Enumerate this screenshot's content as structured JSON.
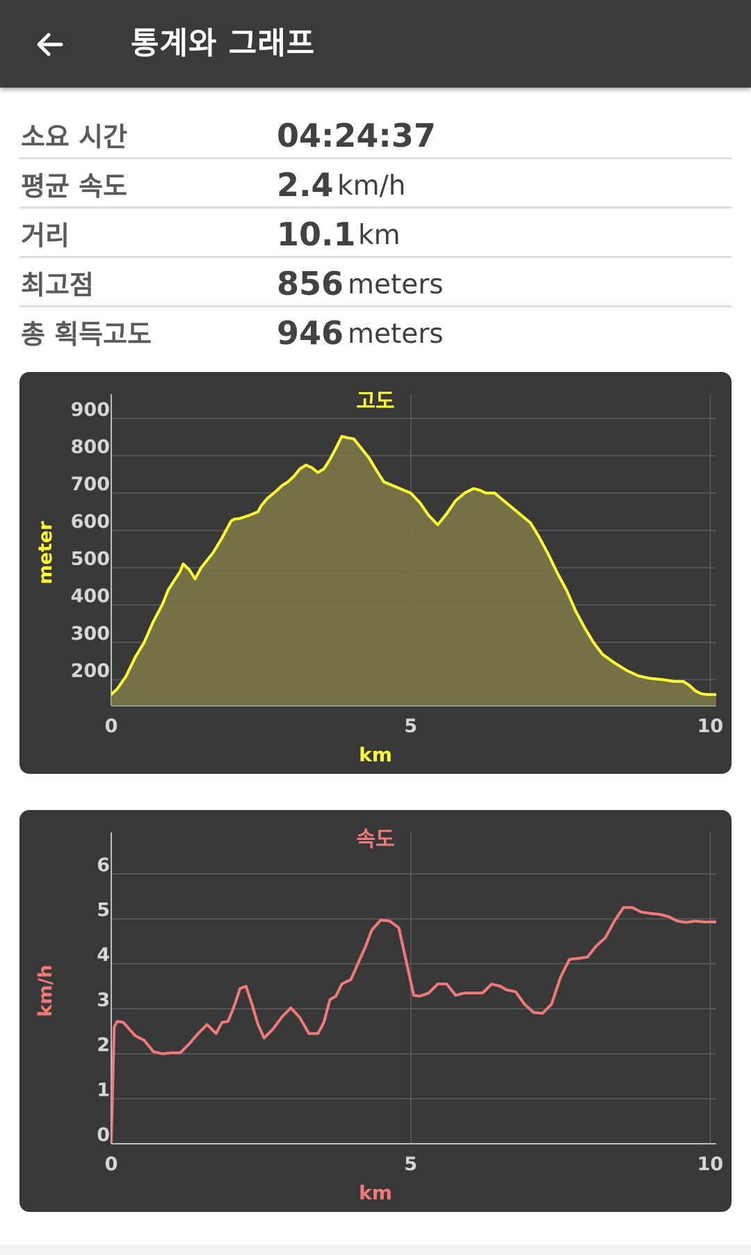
{
  "header": {
    "title": "통계와 그래프",
    "back_icon": "arrow-left-icon"
  },
  "stats": [
    {
      "label": "소요 시간",
      "value": "04:24:37",
      "unit": ""
    },
    {
      "label": "평균 속도",
      "value": "2.4",
      "unit": "km/h"
    },
    {
      "label": "거리",
      "value": "10.1",
      "unit": "km"
    },
    {
      "label": "최고점",
      "value": "856",
      "unit": "meters"
    },
    {
      "label": "총 획득고도",
      "value": "946",
      "unit": "meters"
    }
  ],
  "colors": {
    "appbar": "#3a3a3a",
    "card": "#383838",
    "elevation": "#ffff33",
    "elevation_fill": "#7a7648",
    "speed": "#ef7a78",
    "axis_text": "#d6d6d6",
    "grid": "#5e5e5e"
  },
  "chart_data": [
    {
      "type": "area",
      "title": "고도",
      "xlabel": "km",
      "ylabel": "meter",
      "xlim": [
        0,
        10.1
      ],
      "ylim": [
        130,
        950
      ],
      "xticks": [
        0,
        5,
        10
      ],
      "xtick_labels": [
        "0",
        "5",
        "10"
      ],
      "yticks": [
        200,
        300,
        400,
        500,
        600,
        700,
        800,
        900
      ],
      "ytick_labels": [
        "200",
        "300",
        "400",
        "500",
        "600",
        "700",
        "800",
        "900"
      ],
      "grid": true,
      "series": [
        {
          "x": [
            0,
            0.1,
            0.25,
            0.4,
            0.55,
            0.7,
            0.85,
            0.95,
            1.05,
            1.15,
            1.2,
            1.3,
            1.4,
            1.5,
            1.6,
            1.7,
            1.85,
            2.0,
            2.05,
            2.15,
            2.3,
            2.45,
            2.5,
            2.6,
            2.75,
            2.85,
            2.95,
            3.05,
            3.15,
            3.25,
            3.35,
            3.45,
            3.55,
            3.65,
            3.75,
            3.85,
            3.95,
            4.05,
            4.15,
            4.3,
            4.45,
            4.55,
            4.7,
            4.85,
            5.0,
            5.15,
            5.3,
            5.45,
            5.6,
            5.75,
            5.9,
            6.05,
            6.15,
            6.25,
            6.4,
            6.55,
            6.7,
            6.85,
            7.0,
            7.15,
            7.3,
            7.45,
            7.6,
            7.75,
            7.9,
            8.05,
            8.2,
            8.4,
            8.6,
            8.8,
            9.0,
            9.2,
            9.4,
            9.55,
            9.65,
            9.75,
            9.85,
            9.95,
            10.05,
            10.1
          ],
          "y": [
            160,
            175,
            210,
            260,
            300,
            355,
            400,
            440,
            465,
            490,
            510,
            495,
            470,
            500,
            520,
            540,
            580,
            625,
            630,
            632,
            640,
            650,
            665,
            685,
            705,
            720,
            730,
            745,
            765,
            775,
            768,
            755,
            765,
            790,
            820,
            852,
            848,
            845,
            825,
            795,
            755,
            730,
            720,
            710,
            700,
            675,
            640,
            615,
            645,
            680,
            700,
            712,
            708,
            700,
            700,
            680,
            660,
            640,
            620,
            580,
            535,
            485,
            440,
            385,
            340,
            300,
            268,
            245,
            225,
            210,
            203,
            200,
            195,
            195,
            185,
            170,
            162,
            160,
            160,
            160
          ]
        }
      ]
    },
    {
      "type": "line",
      "title": "속도",
      "xlabel": "km",
      "ylabel": "km/h",
      "xlim": [
        0,
        10.1
      ],
      "ylim": [
        0,
        6.8
      ],
      "xticks": [
        0,
        5,
        10
      ],
      "xtick_labels": [
        "0",
        "5",
        "10"
      ],
      "yticks": [
        0,
        1,
        2,
        3,
        4,
        5,
        6
      ],
      "ytick_labels": [
        "0",
        "1",
        "2",
        "3",
        "4",
        "5",
        "6"
      ],
      "grid": true,
      "series": [
        {
          "x": [
            0,
            0.05,
            0.1,
            0.2,
            0.3,
            0.4,
            0.55,
            0.7,
            0.85,
            1.0,
            1.15,
            1.3,
            1.45,
            1.6,
            1.75,
            1.85,
            1.95,
            2.05,
            2.15,
            2.25,
            2.35,
            2.45,
            2.55,
            2.7,
            2.85,
            3.0,
            3.15,
            3.3,
            3.45,
            3.55,
            3.65,
            3.75,
            3.85,
            4.0,
            4.15,
            4.25,
            4.35,
            4.5,
            4.65,
            4.8,
            4.95,
            5.05,
            5.15,
            5.3,
            5.45,
            5.6,
            5.75,
            5.9,
            6.05,
            6.2,
            6.35,
            6.5,
            6.6,
            6.75,
            6.9,
            7.05,
            7.2,
            7.35,
            7.5,
            7.65,
            7.8,
            7.95,
            8.1,
            8.25,
            8.4,
            8.55,
            8.7,
            8.85,
            9.0,
            9.15,
            9.3,
            9.45,
            9.6,
            9.75,
            9.9,
            10.05,
            10.1
          ],
          "y": [
            0.05,
            2.6,
            2.72,
            2.7,
            2.55,
            2.4,
            2.3,
            2.05,
            2.0,
            2.02,
            2.02,
            2.22,
            2.45,
            2.65,
            2.45,
            2.7,
            2.72,
            3.05,
            3.45,
            3.5,
            3.1,
            2.65,
            2.35,
            2.55,
            2.82,
            3.02,
            2.8,
            2.45,
            2.45,
            2.7,
            3.2,
            3.28,
            3.55,
            3.65,
            4.1,
            4.4,
            4.75,
            4.97,
            4.95,
            4.8,
            3.9,
            3.3,
            3.28,
            3.35,
            3.55,
            3.55,
            3.3,
            3.35,
            3.35,
            3.35,
            3.55,
            3.5,
            3.42,
            3.38,
            3.1,
            2.92,
            2.9,
            3.1,
            3.7,
            4.1,
            4.12,
            4.15,
            4.4,
            4.58,
            4.95,
            5.25,
            5.25,
            5.15,
            5.12,
            5.1,
            5.05,
            4.95,
            4.92,
            4.95,
            4.93,
            4.93,
            4.93
          ]
        }
      ]
    }
  ]
}
